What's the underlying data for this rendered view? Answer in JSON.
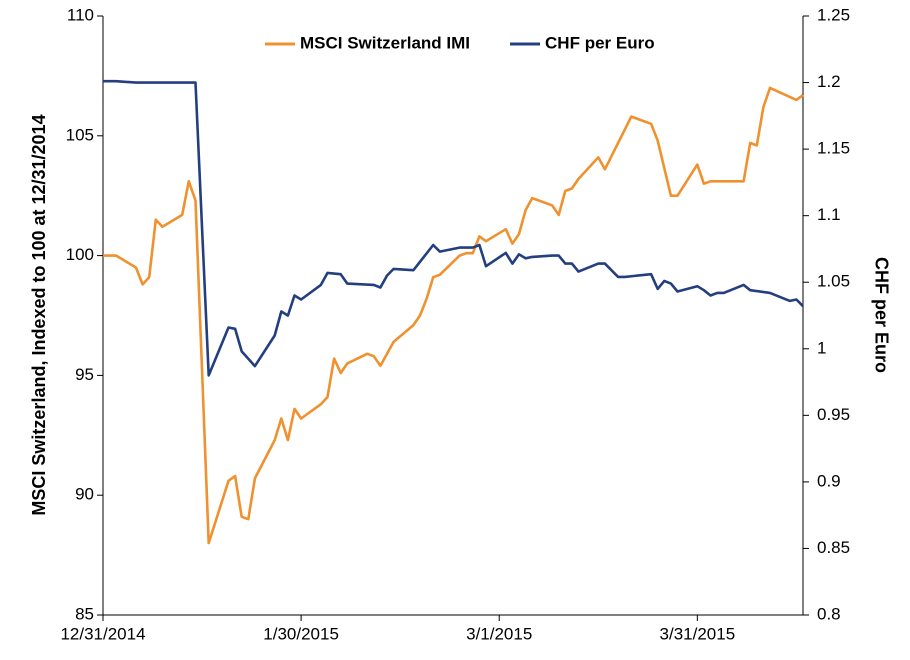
{
  "chart_data": {
    "type": "line",
    "ylabel": "MSCI Switzerland,  Indexed to 100 at 12/31/2014",
    "y2label": "CHF per Euro",
    "legend": "upper center",
    "xlim": [
      "2014-12-31",
      "2015-04-16"
    ],
    "xticks": [
      {
        "value": "2014-12-31",
        "label": "12/31/2014"
      },
      {
        "value": "2015-01-30",
        "label": "1/30/2015"
      },
      {
        "value": "2015-03-01",
        "label": "3/1/2015"
      },
      {
        "value": "2015-03-31",
        "label": "3/31/2015"
      }
    ],
    "ylim": [
      85,
      110
    ],
    "yticks": [
      85,
      90,
      95,
      100,
      105,
      110
    ],
    "y2lim": [
      0.8,
      1.25
    ],
    "y2ticks": [
      0.8,
      0.85,
      0.9,
      0.95,
      1,
      1.05,
      1.1,
      1.15,
      1.2,
      1.25
    ],
    "series": [
      {
        "name": "MSCI Switzerland IMI",
        "color": "#f0912f",
        "axis": "y",
        "x": [
          "2014-12-31",
          "2015-01-02",
          "2015-01-05",
          "2015-01-06",
          "2015-01-07",
          "2015-01-08",
          "2015-01-09",
          "2015-01-12",
          "2015-01-13",
          "2015-01-14",
          "2015-01-16",
          "2015-01-19",
          "2015-01-20",
          "2015-01-21",
          "2015-01-22",
          "2015-01-23",
          "2015-01-26",
          "2015-01-27",
          "2015-01-28",
          "2015-01-29",
          "2015-01-30",
          "2015-02-02",
          "2015-02-03",
          "2015-02-04",
          "2015-02-05",
          "2015-02-06",
          "2015-02-09",
          "2015-02-10",
          "2015-02-11",
          "2015-02-13",
          "2015-02-16",
          "2015-02-17",
          "2015-02-18",
          "2015-02-19",
          "2015-02-20",
          "2015-02-23",
          "2015-02-24",
          "2015-02-25",
          "2015-02-26",
          "2015-02-27",
          "2015-03-02",
          "2015-03-03",
          "2015-03-04",
          "2015-03-05",
          "2015-03-06",
          "2015-03-09",
          "2015-03-10",
          "2015-03-11",
          "2015-03-12",
          "2015-03-13",
          "2015-03-16",
          "2015-03-17",
          "2015-03-21",
          "2015-03-24",
          "2015-03-25",
          "2015-03-27",
          "2015-03-28",
          "2015-03-31",
          "2015-04-01",
          "2015-04-02",
          "2015-04-07",
          "2015-04-08",
          "2015-04-09",
          "2015-04-10",
          "2015-04-11",
          "2015-04-15",
          "2015-04-16"
        ],
        "values": [
          100,
          100,
          99.5,
          98.8,
          99.1,
          101.5,
          101.2,
          101.7,
          103.1,
          102.3,
          88,
          90.6,
          90.8,
          89.1,
          89,
          90.7,
          92.3,
          93.2,
          92.3,
          93.6,
          93.2,
          93.8,
          94.1,
          95.7,
          95.1,
          95.5,
          95.9,
          95.8,
          95.4,
          96.4,
          97.1,
          97.5,
          98.2,
          99.1,
          99.2,
          100,
          100.1,
          100.1,
          100.8,
          100.6,
          101.1,
          100.5,
          100.9,
          101.9,
          102.4,
          102.1,
          101.7,
          102.7,
          102.8,
          103.2,
          104.1,
          103.6,
          105.8,
          105.5,
          104.8,
          102.5,
          102.5,
          103.8,
          103,
          103.1,
          103.1,
          104.7,
          104.6,
          106.2,
          107,
          106.5,
          106.7
        ]
      },
      {
        "name": "CHF per Euro",
        "color": "#243f7f",
        "axis": "y2",
        "x": [
          "2014-12-31",
          "2015-01-02",
          "2015-01-05",
          "2015-01-07",
          "2015-01-09",
          "2015-01-12",
          "2015-01-14",
          "2015-01-16",
          "2015-01-19",
          "2015-01-20",
          "2015-01-21",
          "2015-01-23",
          "2015-01-26",
          "2015-01-27",
          "2015-01-28",
          "2015-01-29",
          "2015-01-30",
          "2015-02-02",
          "2015-02-03",
          "2015-02-05",
          "2015-02-06",
          "2015-02-10",
          "2015-02-11",
          "2015-02-12",
          "2015-02-13",
          "2015-02-16",
          "2015-02-19",
          "2015-02-20",
          "2015-02-23",
          "2015-02-25",
          "2015-02-26",
          "2015-02-27",
          "2015-03-02",
          "2015-03-03",
          "2015-03-04",
          "2015-03-05",
          "2015-03-06",
          "2015-03-09",
          "2015-03-10",
          "2015-03-11",
          "2015-03-12",
          "2015-03-13",
          "2015-03-16",
          "2015-03-17",
          "2015-03-19",
          "2015-03-20",
          "2015-03-24",
          "2015-03-25",
          "2015-03-26",
          "2015-03-27",
          "2015-03-28",
          "2015-03-31",
          "2015-04-01",
          "2015-04-02",
          "2015-04-03",
          "2015-04-04",
          "2015-04-07",
          "2015-04-08",
          "2015-04-11",
          "2015-04-14",
          "2015-04-15",
          "2015-04-16"
        ],
        "values": [
          1.201,
          1.201,
          1.2,
          1.2,
          1.2,
          1.2,
          1.2,
          0.98,
          1.016,
          1.015,
          0.998,
          0.987,
          1.01,
          1.028,
          1.025,
          1.04,
          1.037,
          1.048,
          1.057,
          1.056,
          1.049,
          1.048,
          1.046,
          1.055,
          1.06,
          1.059,
          1.078,
          1.073,
          1.076,
          1.076,
          1.078,
          1.062,
          1.072,
          1.064,
          1.071,
          1.068,
          1.069,
          1.07,
          1.07,
          1.064,
          1.064,
          1.058,
          1.064,
          1.064,
          1.054,
          1.054,
          1.056,
          1.045,
          1.051,
          1.049,
          1.043,
          1.047,
          1.044,
          1.04,
          1.042,
          1.042,
          1.048,
          1.044,
          1.042,
          1.036,
          1.037,
          1.032
        ]
      }
    ]
  }
}
